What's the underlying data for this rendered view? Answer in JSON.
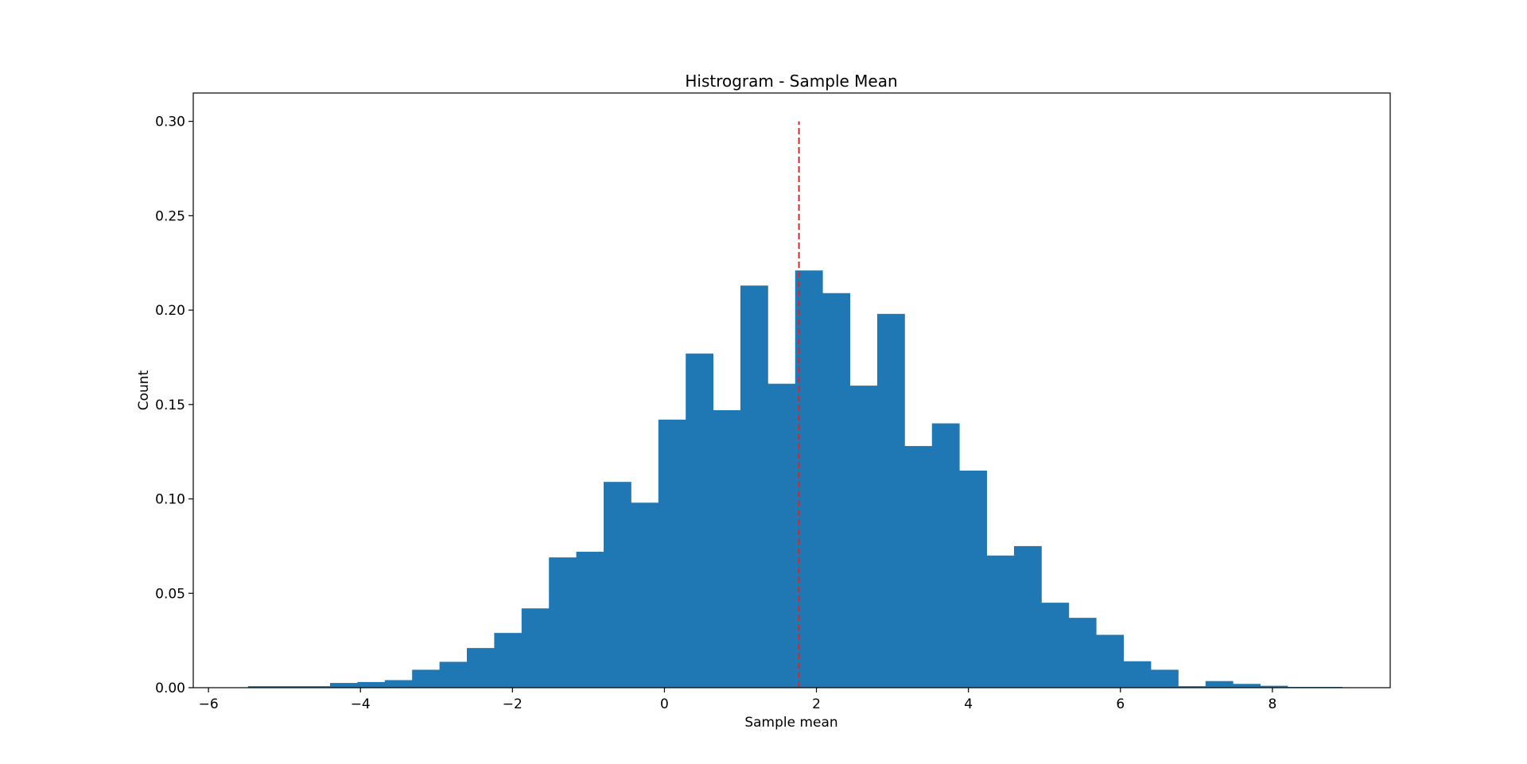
{
  "chart_data": {
    "type": "bar",
    "title": "Histrogram - Sample Mean",
    "xlabel": "Sample mean",
    "ylabel": "Count",
    "xlim": [
      -6.2,
      9.55
    ],
    "ylim": [
      0,
      0.315
    ],
    "xticks": [
      -6,
      -4,
      -2,
      0,
      2,
      4,
      6,
      8
    ],
    "xtick_labels": [
      "−6",
      "−4",
      "−2",
      "0",
      "2",
      "4",
      "6",
      "8"
    ],
    "yticks": [
      0,
      0.05,
      0.1,
      0.15,
      0.2,
      0.25,
      0.3
    ],
    "ytick_labels": [
      "0.00",
      "0.05",
      "0.10",
      "0.15",
      "0.20",
      "0.25",
      "0.30"
    ],
    "bar_color": "#1f77b4",
    "bins": [
      {
        "x0": -5.48,
        "x1": -5.12,
        "value": 0.0008
      },
      {
        "x0": -5.12,
        "x1": -4.76,
        "value": 0.0008
      },
      {
        "x0": -4.76,
        "x1": -4.4,
        "value": 0.0008
      },
      {
        "x0": -4.4,
        "x1": -4.04,
        "value": 0.0025
      },
      {
        "x0": -4.04,
        "x1": -3.68,
        "value": 0.003
      },
      {
        "x0": -3.68,
        "x1": -3.32,
        "value": 0.004
      },
      {
        "x0": -3.32,
        "x1": -2.96,
        "value": 0.0095
      },
      {
        "x0": -2.96,
        "x1": -2.6,
        "value": 0.0137
      },
      {
        "x0": -2.6,
        "x1": -2.24,
        "value": 0.021
      },
      {
        "x0": -2.24,
        "x1": -1.88,
        "value": 0.029
      },
      {
        "x0": -1.88,
        "x1": -1.52,
        "value": 0.042
      },
      {
        "x0": -1.52,
        "x1": -1.16,
        "value": 0.069
      },
      {
        "x0": -1.16,
        "x1": -0.8,
        "value": 0.072
      },
      {
        "x0": -0.8,
        "x1": -0.44,
        "value": 0.109
      },
      {
        "x0": -0.44,
        "x1": -0.08,
        "value": 0.098
      },
      {
        "x0": -0.08,
        "x1": 0.28,
        "value": 0.142
      },
      {
        "x0": 0.28,
        "x1": 0.64,
        "value": 0.177
      },
      {
        "x0": 0.64,
        "x1": 1.0,
        "value": 0.147
      },
      {
        "x0": 1.0,
        "x1": 1.36,
        "value": 0.213
      },
      {
        "x0": 1.36,
        "x1": 1.72,
        "value": 0.161
      },
      {
        "x0": 1.72,
        "x1": 2.08,
        "value": 0.221
      },
      {
        "x0": 2.08,
        "x1": 2.44,
        "value": 0.209
      },
      {
        "x0": 2.44,
        "x1": 2.8,
        "value": 0.16
      },
      {
        "x0": 2.8,
        "x1": 3.16,
        "value": 0.198
      },
      {
        "x0": 3.16,
        "x1": 3.52,
        "value": 0.128
      },
      {
        "x0": 3.52,
        "x1": 3.88,
        "value": 0.14
      },
      {
        "x0": 3.88,
        "x1": 4.24,
        "value": 0.115
      },
      {
        "x0": 4.24,
        "x1": 4.6,
        "value": 0.07
      },
      {
        "x0": 4.6,
        "x1": 4.96,
        "value": 0.075
      },
      {
        "x0": 4.96,
        "x1": 5.32,
        "value": 0.045
      },
      {
        "x0": 5.32,
        "x1": 5.68,
        "value": 0.037
      },
      {
        "x0": 5.68,
        "x1": 6.04,
        "value": 0.028
      },
      {
        "x0": 6.04,
        "x1": 6.4,
        "value": 0.014
      },
      {
        "x0": 6.4,
        "x1": 6.76,
        "value": 0.0095
      },
      {
        "x0": 6.76,
        "x1": 7.12,
        "value": 0.0008
      },
      {
        "x0": 7.12,
        "x1": 7.48,
        "value": 0.0035
      },
      {
        "x0": 7.48,
        "x1": 7.84,
        "value": 0.002
      },
      {
        "x0": 7.84,
        "x1": 8.2,
        "value": 0.001
      },
      {
        "x0": 8.2,
        "x1": 8.56,
        "value": 0.0004
      },
      {
        "x0": 8.56,
        "x1": 8.92,
        "value": 0.0004
      }
    ],
    "reference_line": {
      "x": 1.77,
      "y_range": [
        0,
        0.3
      ],
      "color": "#d62728",
      "style": "dashed"
    },
    "grid": false,
    "legend": "none"
  }
}
